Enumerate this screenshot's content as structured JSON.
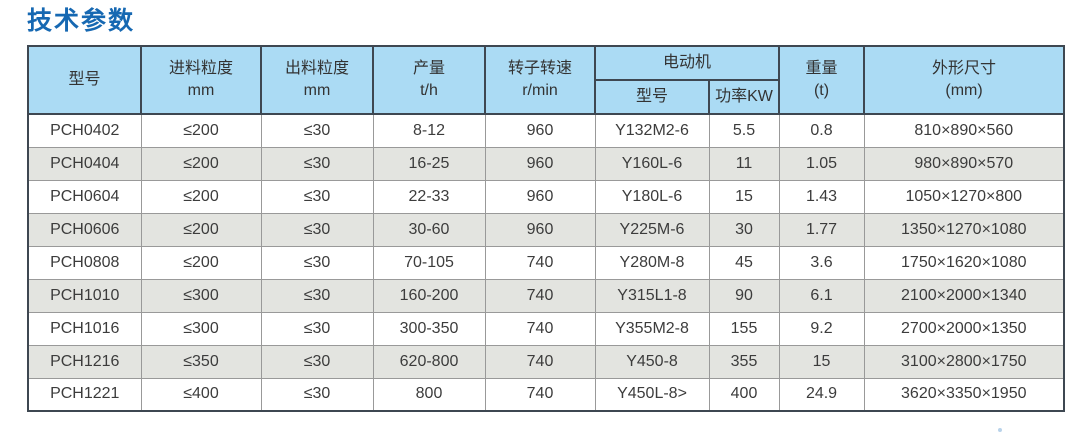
{
  "page": {
    "title": "技术参数"
  },
  "theme": {
    "title_color": "#1668b2",
    "header_bg": "#abdbf4",
    "row_alt_bg": "#e3e4e0",
    "row_bg": "#ffffff",
    "border_dark": "#3e4751",
    "border_light": "#999999",
    "text_color": "#3c3c3c"
  },
  "table": {
    "header": {
      "model": "型号",
      "feed_size": {
        "line1": "进料粒度",
        "line2": "mm"
      },
      "discharge_size": {
        "line1": "出料粒度",
        "line2": "mm"
      },
      "capacity": {
        "line1": "产量",
        "line2": "t/h"
      },
      "rotor_speed": {
        "line1": "转子转速",
        "line2": "r/min"
      },
      "motor": {
        "group": "电动机",
        "model": "型号",
        "power": "功率KW"
      },
      "weight": {
        "line1": "重量",
        "line2": "(t)"
      },
      "dimensions": {
        "line1": "外形尺寸",
        "line2": "(mm)"
      }
    },
    "columns": [
      "model",
      "feed-size",
      "discharge-size",
      "capacity",
      "rotor-speed",
      "motor-model",
      "motor-power",
      "weight",
      "dimensions"
    ],
    "rows": [
      [
        "PCH0402",
        "≤200",
        "≤30",
        "8-12",
        "960",
        "Y132M2-6",
        "5.5",
        "0.8",
        "810×890×560"
      ],
      [
        "PCH0404",
        "≤200",
        "≤30",
        "16-25",
        "960",
        "Y160L-6",
        "11",
        "1.05",
        "980×890×570"
      ],
      [
        "PCH0604",
        "≤200",
        "≤30",
        "22-33",
        "960",
        "Y180L-6",
        "15",
        "1.43",
        "1050×1270×800"
      ],
      [
        "PCH0606",
        "≤200",
        "≤30",
        "30-60",
        "960",
        "Y225M-6",
        "30",
        "1.77",
        "1350×1270×1080"
      ],
      [
        "PCH0808",
        "≤200",
        "≤30",
        "70-105",
        "740",
        "Y280M-8",
        "45",
        "3.6",
        "1750×1620×1080"
      ],
      [
        "PCH1010",
        "≤300",
        "≤30",
        "160-200",
        "740",
        "Y315L1-8",
        "90",
        "6.1",
        "2100×2000×1340"
      ],
      [
        "PCH1016",
        "≤300",
        "≤30",
        "300-350",
        "740",
        "Y355M2-8",
        "155",
        "9.2",
        "2700×2000×1350"
      ],
      [
        "PCH1216",
        "≤350",
        "≤30",
        "620-800",
        "740",
        "Y450-8",
        "355",
        "15",
        "3100×2800×1750"
      ],
      [
        "PCH1221",
        "≤400",
        "≤30",
        "800",
        "740",
        "Y450L-8>",
        "400",
        "24.9",
        "3620×3350×1950"
      ]
    ]
  }
}
